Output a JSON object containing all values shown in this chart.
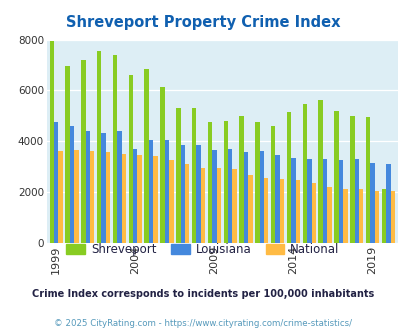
{
  "title": "Shreveport Property Crime Index",
  "title_color": "#1060b0",
  "subtitle": "Crime Index corresponds to incidents per 100,000 inhabitants",
  "subtitle_color": "#222244",
  "footer": "© 2025 CityRating.com - https://www.cityrating.com/crime-statistics/",
  "footer_color": "#5599bb",
  "years": [
    1999,
    2000,
    2001,
    2002,
    2003,
    2004,
    2005,
    2006,
    2007,
    2008,
    2009,
    2010,
    2011,
    2012,
    2013,
    2014,
    2015,
    2016,
    2017,
    2018,
    2019,
    2020
  ],
  "shreveport": [
    7950,
    6950,
    7200,
    7550,
    7400,
    6600,
    6850,
    6150,
    5300,
    5300,
    4750,
    4800,
    5000,
    4750,
    4600,
    5150,
    5450,
    5600,
    5200,
    5000,
    4950,
    2100
  ],
  "louisiana": [
    4750,
    4600,
    4400,
    4300,
    4400,
    3700,
    4050,
    4050,
    3850,
    3850,
    3650,
    3700,
    3550,
    3600,
    3450,
    3350,
    3300,
    3300,
    3250,
    3300,
    3150,
    3100
  ],
  "national": [
    3600,
    3650,
    3600,
    3550,
    3500,
    3450,
    3400,
    3250,
    3100,
    2950,
    2950,
    2900,
    2650,
    2550,
    2500,
    2450,
    2350,
    2200,
    2100,
    2100,
    2050,
    2050
  ],
  "shreveport_color": "#88cc22",
  "louisiana_color": "#4488dd",
  "national_color": "#ffbb44",
  "bg_color": "#ddeef5",
  "ylim": [
    0,
    8000
  ],
  "yticks": [
    0,
    2000,
    4000,
    6000,
    8000
  ],
  "xtick_years": [
    1999,
    2004,
    2009,
    2014,
    2019
  ],
  "bar_width": 0.28,
  "legend_labels": [
    "Shreveport",
    "Louisiana",
    "National"
  ]
}
